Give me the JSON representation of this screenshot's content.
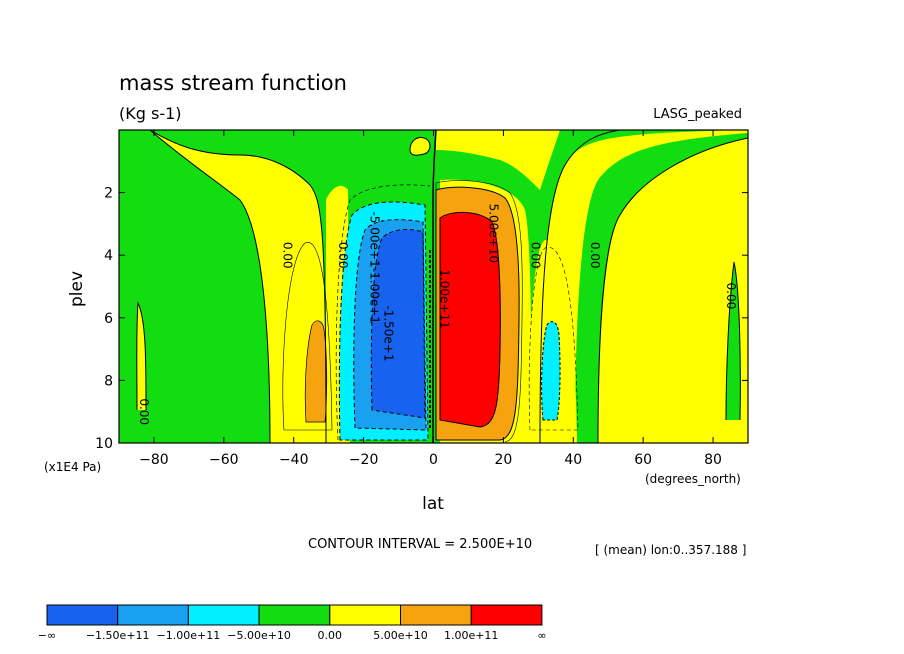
{
  "chart_data": {
    "type": "heatmap",
    "title": "mass stream function",
    "units": "(Kg s-1)",
    "dataset": "LASG_peaked",
    "xlabel": "lat",
    "ylabel": "plev",
    "x_units": "(degrees_north)",
    "y_units": "(x1E4 Pa)",
    "xlim": [
      -90,
      90
    ],
    "ylim": [
      0,
      10
    ],
    "x_ticks": [
      -80,
      -60,
      -40,
      -20,
      0,
      20,
      40,
      60,
      80
    ],
    "y_ticks": [
      2,
      4,
      6,
      8,
      10
    ],
    "y_inverted": true,
    "contour_interval_text": "CONTOUR INTERVAL = 2.500E+10",
    "averaging_text": "[ (mean) lon:0..357.188 ]",
    "colorbar": {
      "colors": [
        "#1763f0",
        "#1aa0f0",
        "#00f0ff",
        "#11dd11",
        "#ffff00",
        "#f5a410",
        "#ff0000"
      ],
      "labels": [
        "-∞",
        "-1.50e+11",
        "-1.00e+11",
        "-5.00e+10",
        "0.00",
        "5.00e+10",
        "1.00e+11",
        "∞"
      ]
    },
    "contour_labels": [
      {
        "text": "0.00",
        "lat": -43,
        "plev": 4
      },
      {
        "text": "0.00",
        "lat": -27,
        "plev": 4
      },
      {
        "text": "0.00",
        "lat": -84,
        "plev": 9
      },
      {
        "text": "0.00",
        "lat": 28,
        "plev": 4
      },
      {
        "text": "0.00",
        "lat": 45,
        "plev": 4
      },
      {
        "text": "0.00",
        "lat": 84,
        "plev": 5.3
      },
      {
        "text": "-5.00e+1",
        "lat": -18,
        "plev": 3.5
      },
      {
        "text": "-1.00e+1",
        "lat": -18,
        "plev": 5.3
      },
      {
        "text": "-1.50e+1",
        "lat": -14,
        "plev": 6.5
      },
      {
        "text": "5.00e+10",
        "lat": 16,
        "plev": 3.3
      },
      {
        "text": "1.00e+11",
        "lat": 2,
        "plev": 5.4
      }
    ],
    "fields": [
      {
        "level": "0.00",
        "region": "yellow band upper-left",
        "lat_range": [
          -90,
          -30
        ],
        "plev_range": [
          0.3,
          10
        ]
      },
      {
        "level": "0.00",
        "region": "yellow band upper-right",
        "lat_range": [
          30,
          90
        ],
        "plev_range": [
          0.3,
          10
        ]
      },
      {
        "level": "5.00e+10",
        "region": "orange core southern",
        "lat_range": [
          -36,
          -31
        ],
        "plev_range": [
          6.1,
          9.2
        ]
      },
      {
        "level": "-5.00e+10",
        "region": "cyan core northern",
        "lat_range": [
          32,
          37
        ],
        "plev_range": [
          6.8,
          9.3
        ]
      },
      {
        "level": "-1.50e+11",
        "region": "blue southern cell",
        "lat_range": [
          -17,
          -1
        ],
        "plev_range": [
          3.0,
          9.3
        ]
      },
      {
        "level": "1.00e+11",
        "region": "red northern cell",
        "lat_range": [
          2,
          20
        ],
        "plev_range": [
          2.8,
          9.3
        ]
      }
    ]
  }
}
